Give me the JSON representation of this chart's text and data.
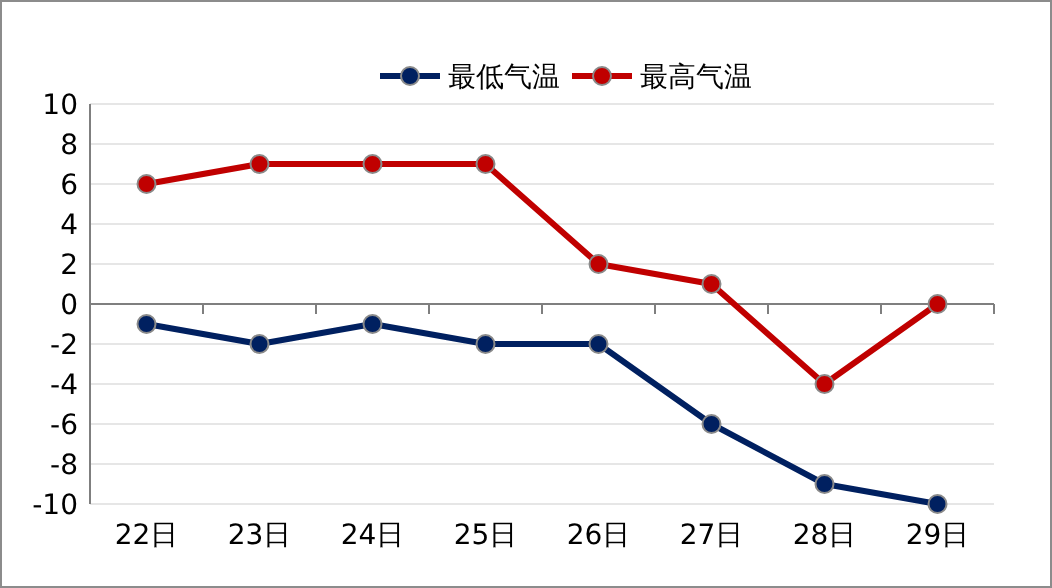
{
  "chart_data": {
    "type": "line",
    "categories": [
      "22日",
      "23日",
      "24日",
      "25日",
      "26日",
      "27日",
      "28日",
      "29日"
    ],
    "series": [
      {
        "name": "最低气温",
        "color": "#002060",
        "values": [
          -1,
          -2,
          -1,
          -2,
          -2,
          -6,
          -9,
          -10
        ]
      },
      {
        "name": "最高气温",
        "color": "#c00000",
        "values": [
          6,
          7,
          7,
          7,
          2,
          1,
          -4,
          0
        ]
      }
    ],
    "ylim": [
      -10,
      10
    ],
    "yticks": [
      -10,
      -8,
      -6,
      -4,
      -2,
      0,
      2,
      4,
      6,
      8,
      10
    ],
    "grid": "y",
    "legend": "top",
    "marker": "circle"
  }
}
